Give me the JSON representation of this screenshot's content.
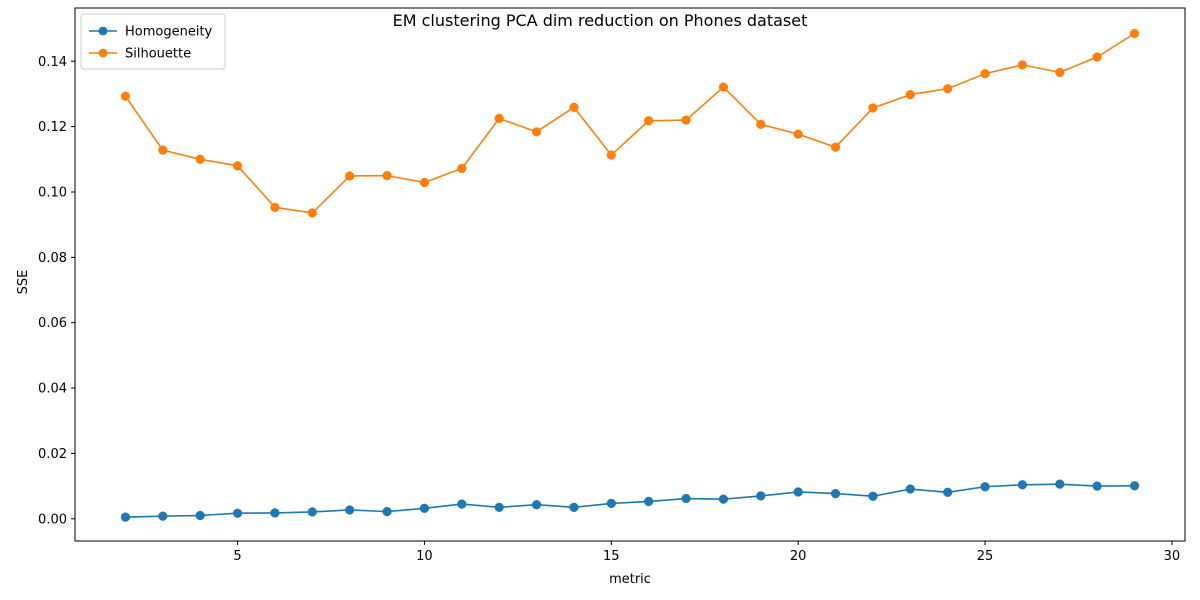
{
  "chart_data": {
    "type": "line",
    "title": "EM clustering PCA dim reduction on Phones dataset",
    "xlabel": "metric",
    "ylabel": "SSE",
    "xlim": [
      0.65,
      30.35
    ],
    "ylim": [
      -0.0068,
      0.1563
    ],
    "xticks": [
      5,
      10,
      15,
      20,
      25,
      30
    ],
    "yticks": [
      0.0,
      0.02,
      0.04,
      0.06,
      0.08,
      0.1,
      0.12,
      0.14
    ],
    "ytick_labels": [
      "0.00",
      "0.02",
      "0.04",
      "0.06",
      "0.08",
      "0.10",
      "0.12",
      "0.14"
    ],
    "grid": false,
    "legend_position": "top-left",
    "x": [
      2,
      3,
      4,
      5,
      6,
      7,
      8,
      9,
      10,
      11,
      12,
      13,
      14,
      15,
      16,
      17,
      18,
      19,
      20,
      21,
      22,
      23,
      24,
      25,
      26,
      27,
      28,
      29
    ],
    "series": [
      {
        "name": "Homogeneity",
        "color": "#1f77b4",
        "values": [
          0.0005,
          0.0008,
          0.001,
          0.0017,
          0.0018,
          0.0021,
          0.0027,
          0.0022,
          0.0032,
          0.0045,
          0.0035,
          0.0043,
          0.0035,
          0.0047,
          0.0053,
          0.0062,
          0.006,
          0.007,
          0.0082,
          0.0077,
          0.0069,
          0.0091,
          0.0081,
          0.0098,
          0.0104,
          0.0106,
          0.01,
          0.0101
        ]
      },
      {
        "name": "Silhouette",
        "color": "#ff7f0e",
        "values": [
          0.1293,
          0.1128,
          0.11,
          0.108,
          0.0953,
          0.0936,
          0.1049,
          0.105,
          0.1029,
          0.1072,
          0.1225,
          0.1184,
          0.1259,
          0.1113,
          0.1218,
          0.122,
          0.1321,
          0.1207,
          0.1177,
          0.1137,
          0.1257,
          0.1298,
          0.1316,
          0.1362,
          0.1389,
          0.1366,
          0.1413,
          0.1485
        ]
      }
    ]
  }
}
